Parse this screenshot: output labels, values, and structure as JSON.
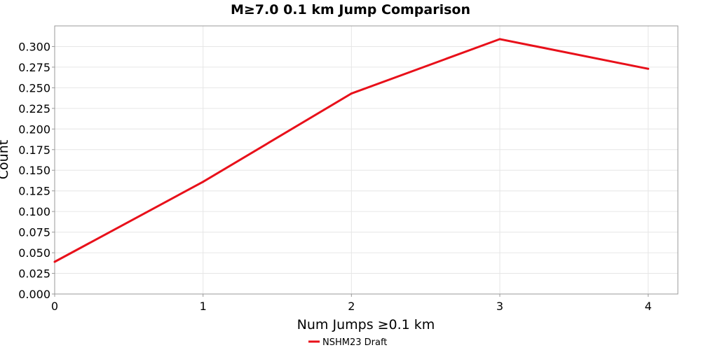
{
  "chart_data": {
    "type": "line",
    "title": "M≥7.0 0.1 km Jump Comparison",
    "xlabel": "Num Jumps ≥0.1 km",
    "ylabel": "Count",
    "xlim": [
      0,
      4.2
    ],
    "ylim": [
      0,
      0.325
    ],
    "xticks": [
      0,
      1,
      2,
      3,
      4
    ],
    "xtick_labels": [
      "0",
      "1",
      "2",
      "3",
      "4"
    ],
    "yticks": [
      0,
      0.025,
      0.05,
      0.075,
      0.1,
      0.125,
      0.15,
      0.175,
      0.2,
      0.225,
      0.25,
      0.275,
      0.3
    ],
    "ytick_labels": [
      "0.000",
      "0.025",
      "0.050",
      "0.075",
      "0.100",
      "0.125",
      "0.150",
      "0.175",
      "0.200",
      "0.225",
      "0.250",
      "0.275",
      "0.300"
    ],
    "grid": true,
    "legend_position": "bottom-center",
    "series": [
      {
        "name": "NSHM23 Draft",
        "color": "#e8101a",
        "x": [
          0,
          1,
          2,
          3,
          4
        ],
        "y": [
          0.039,
          0.136,
          0.243,
          0.309,
          0.273
        ]
      }
    ]
  }
}
